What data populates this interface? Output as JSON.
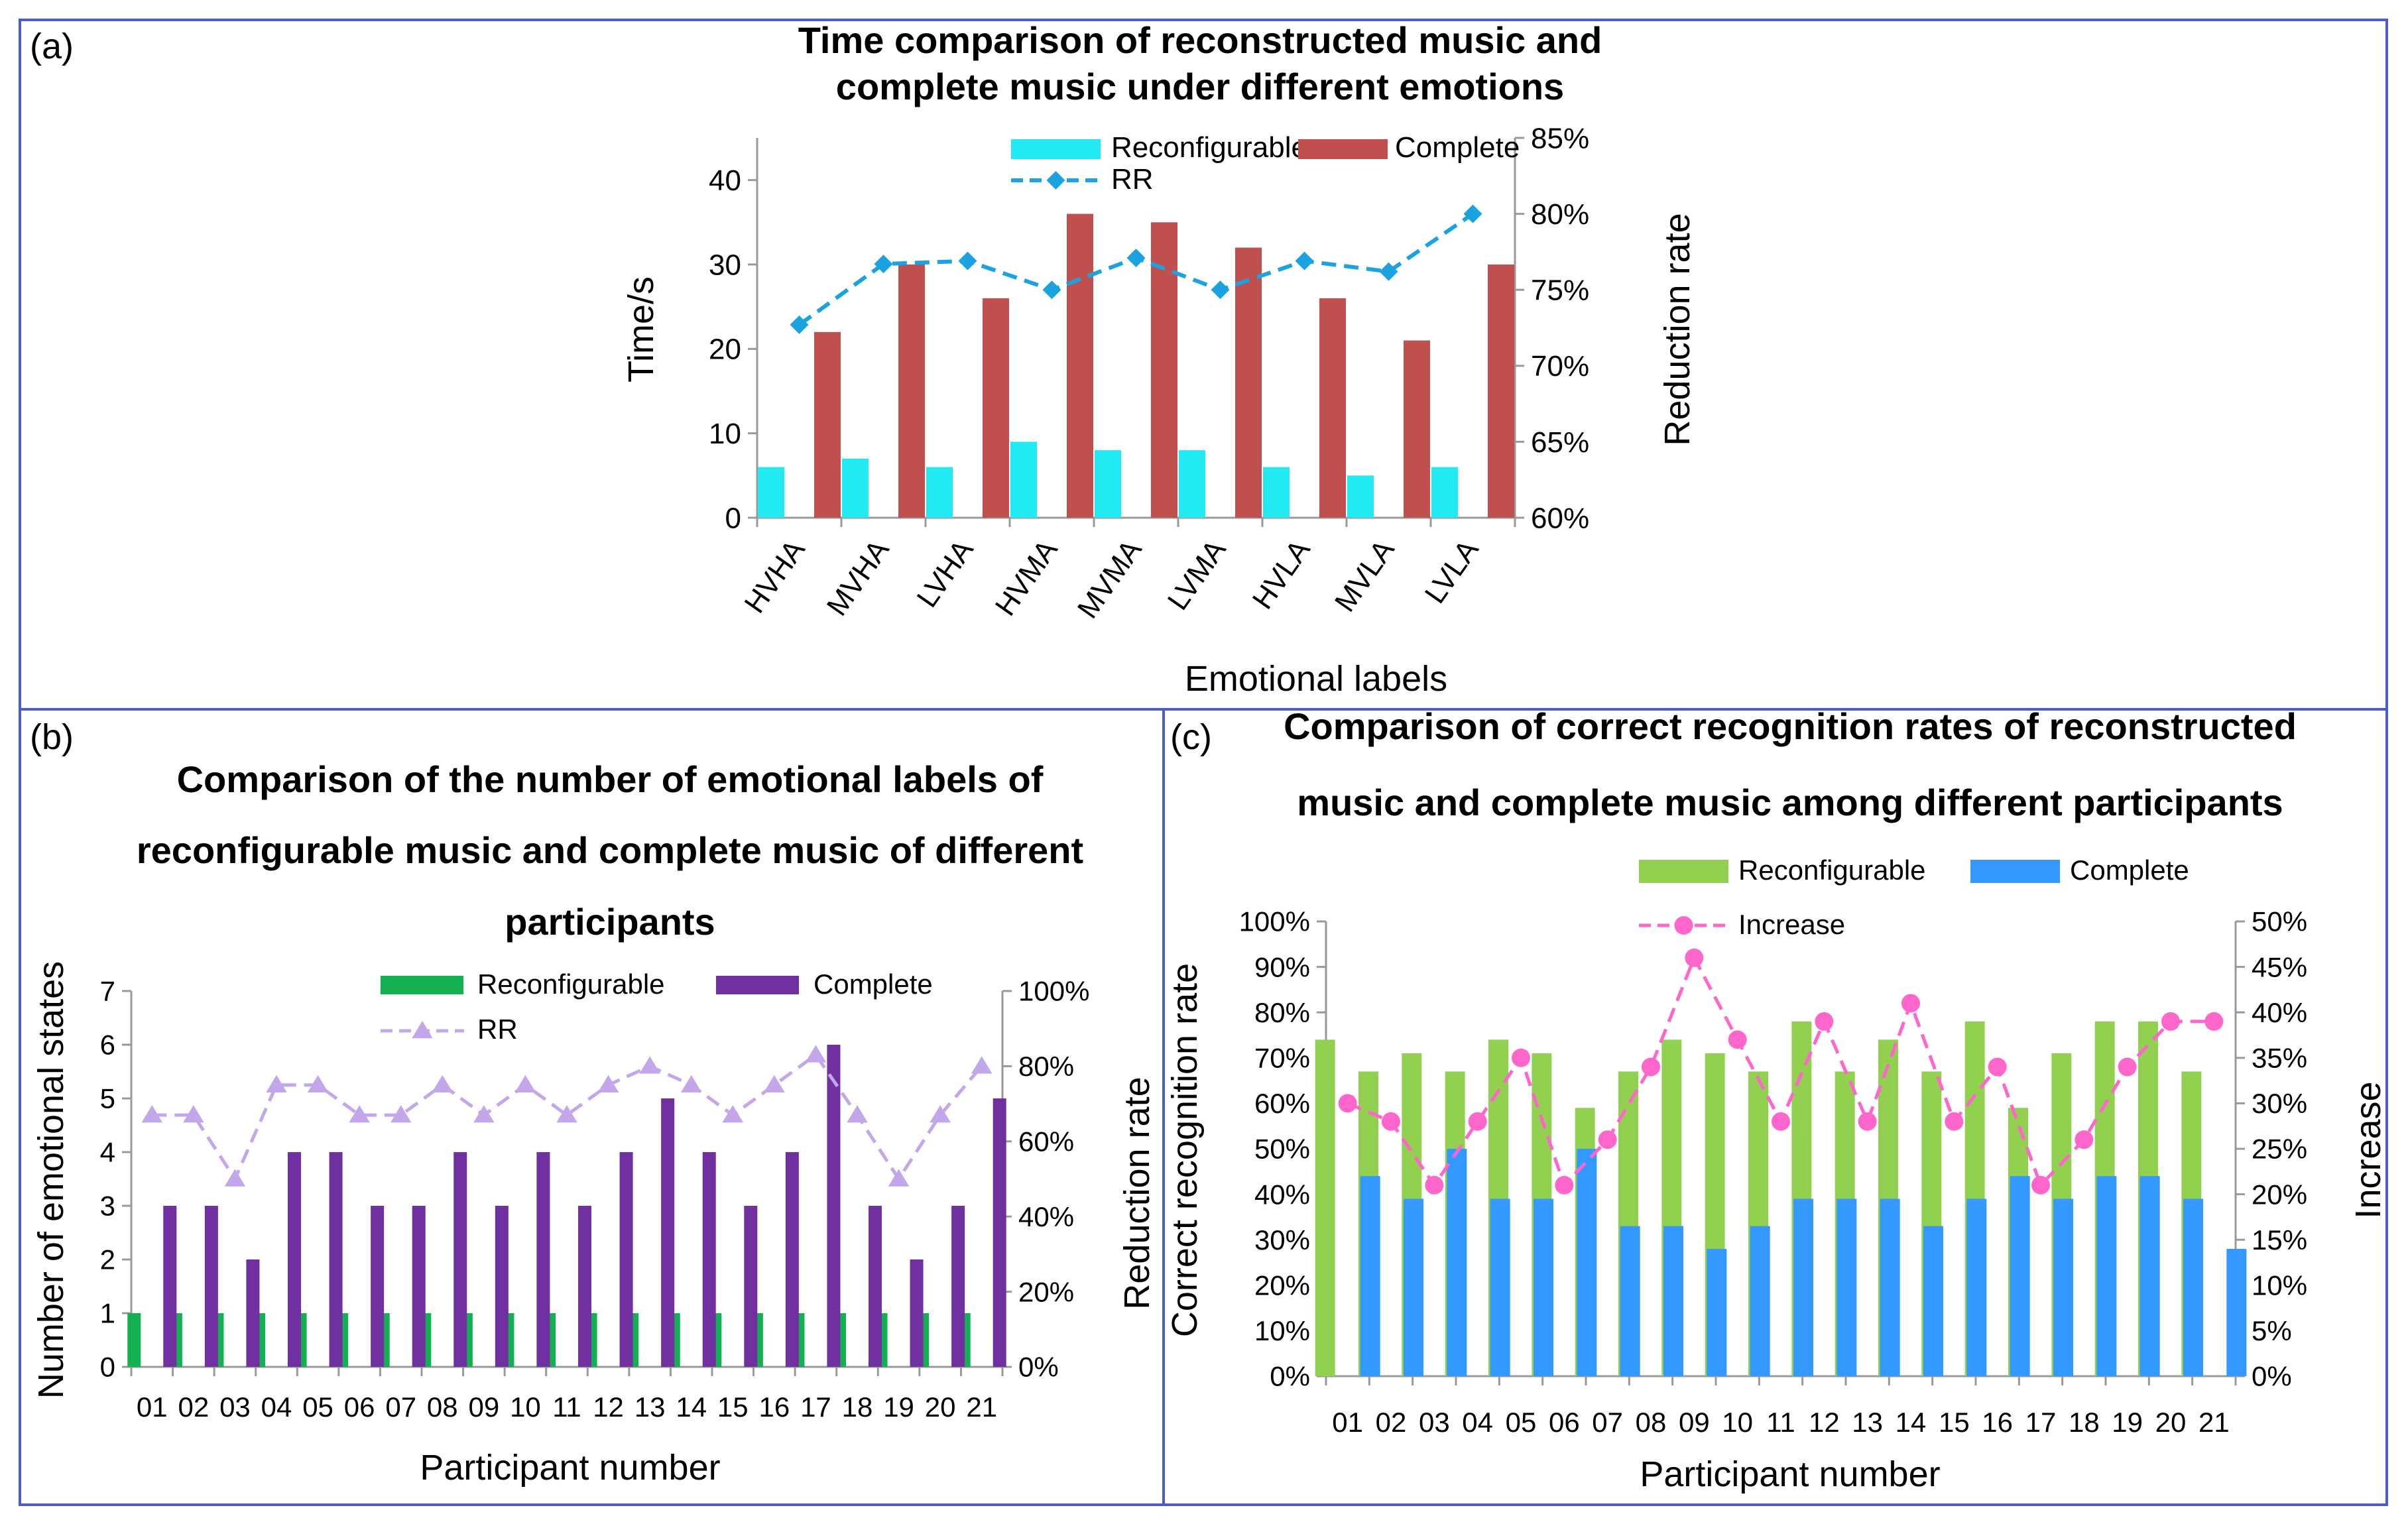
{
  "chart_data": [
    {
      "panel_label": "(a)",
      "type": "bar",
      "title": [
        "Time comparison of reconstructed music and",
        "complete music under different emotions"
      ],
      "xlabel": "Emotional labels",
      "ylabel": "Time/s",
      "y2label": "Reduction rate",
      "ylim": [
        0,
        45
      ],
      "yticks": [
        0,
        10,
        20,
        30,
        40
      ],
      "ytick_labels": [
        "0",
        "10",
        "20",
        "30",
        "40"
      ],
      "y2lim": [
        60,
        85
      ],
      "y2ticks": [
        60,
        65,
        70,
        75,
        80,
        85
      ],
      "y2tick_labels": [
        "60%",
        "65%",
        "70%",
        "75%",
        "80%",
        "85%"
      ],
      "categories": [
        "HVHA",
        "MVHA",
        "LVHA",
        "HVMA",
        "MVMA",
        "LVMA",
        "HVLA",
        "MVLA",
        "LVLA"
      ],
      "series": [
        {
          "name": "Reconfigurable",
          "kind": "bar",
          "axis": "left",
          "color": "#22eaf2",
          "values": [
            6,
            7,
            6,
            9,
            8,
            8,
            6,
            5,
            6
          ]
        },
        {
          "name": "Complete",
          "kind": "bar",
          "axis": "left",
          "color": "#c0504d",
          "values": [
            22,
            30,
            26,
            36,
            35,
            32,
            26,
            21,
            30
          ]
        },
        {
          "name": "RR",
          "kind": "line",
          "axis": "right",
          "color": "#1aa3e0",
          "marker": "diamond",
          "dashed": true,
          "values": [
            72.7,
            76.7,
            76.9,
            75.0,
            77.1,
            75.0,
            76.9,
            76.2,
            80.0
          ]
        }
      ],
      "legend": "top-right",
      "grid": false
    },
    {
      "panel_label": "(b)",
      "type": "bar",
      "title": [
        "Comparison of the number of emotional labels of",
        "reconfigurable music and complete music of different",
        "participants"
      ],
      "xlabel": "Participant number",
      "ylabel": "Number of emotional states",
      "y2label": "Reduction rate",
      "ylim": [
        0,
        7
      ],
      "yticks": [
        0,
        1,
        2,
        3,
        4,
        5,
        6,
        7
      ],
      "ytick_labels": [
        "0",
        "1",
        "2",
        "3",
        "4",
        "5",
        "6",
        "7"
      ],
      "y2lim": [
        0,
        100
      ],
      "y2ticks": [
        0,
        20,
        40,
        60,
        80,
        100
      ],
      "y2tick_labels": [
        "0%",
        "20%",
        "40%",
        "60%",
        "80%",
        "100%"
      ],
      "categories": [
        "01",
        "02",
        "03",
        "04",
        "05",
        "06",
        "07",
        "08",
        "09",
        "10",
        "11",
        "12",
        "13",
        "14",
        "15",
        "16",
        "17",
        "18",
        "19",
        "20",
        "21"
      ],
      "series": [
        {
          "name": "Reconfigurable",
          "kind": "bar",
          "axis": "left",
          "color": "#12b050",
          "values": [
            1,
            1,
            1,
            1,
            1,
            1,
            1,
            1,
            1,
            1,
            1,
            1,
            1,
            1,
            1,
            1,
            1,
            1,
            1,
            1,
            1
          ]
        },
        {
          "name": "Complete",
          "kind": "bar",
          "axis": "left",
          "color": "#7030a0",
          "values": [
            3,
            3,
            2,
            4,
            4,
            3,
            3,
            4,
            3,
            4,
            3,
            4,
            5,
            4,
            3,
            4,
            6,
            3,
            2,
            3,
            5
          ]
        },
        {
          "name": "RR",
          "kind": "line",
          "axis": "right",
          "color": "#c4a6ea",
          "marker": "triangle",
          "dashed": true,
          "values": [
            67,
            67,
            50,
            75,
            75,
            67,
            67,
            75,
            67,
            75,
            67,
            75,
            80,
            75,
            67,
            75,
            83,
            67,
            50,
            67,
            80
          ]
        }
      ],
      "legend": "top-right",
      "grid": false
    },
    {
      "panel_label": "(c)",
      "type": "bar",
      "title": [
        "Comparison of correct recognition rates of reconstructed",
        "music and complete music among different participants"
      ],
      "xlabel": "Participant number",
      "ylabel": "Correct recognition rate",
      "y2label": "Increase",
      "ylim": [
        0,
        100
      ],
      "yticks": [
        0,
        10,
        20,
        30,
        40,
        50,
        60,
        70,
        80,
        90,
        100
      ],
      "ytick_labels": [
        "0%",
        "10%",
        "20%",
        "30%",
        "40%",
        "50%",
        "60%",
        "70%",
        "80%",
        "90%",
        "100%"
      ],
      "y2lim": [
        0,
        50
      ],
      "y2ticks": [
        0,
        5,
        10,
        15,
        20,
        25,
        30,
        35,
        40,
        45,
        50
      ],
      "y2tick_labels": [
        "0%",
        "5%",
        "10%",
        "15%",
        "20%",
        "25%",
        "30%",
        "35%",
        "40%",
        "45%",
        "50%"
      ],
      "categories": [
        "01",
        "02",
        "03",
        "04",
        "05",
        "06",
        "07",
        "08",
        "09",
        "10",
        "11",
        "12",
        "13",
        "14",
        "15",
        "16",
        "17",
        "18",
        "19",
        "20",
        "21"
      ],
      "series": [
        {
          "name": "Reconfigurable",
          "kind": "bar",
          "axis": "left",
          "color": "#92d050",
          "values": [
            74,
            67,
            71,
            67,
            74,
            71,
            59,
            67,
            74,
            71,
            67,
            78,
            67,
            74,
            67,
            78,
            59,
            71,
            78,
            78,
            67
          ]
        },
        {
          "name": "Complete",
          "kind": "bar",
          "axis": "left",
          "color": "#3399ff",
          "values": [
            44,
            39,
            50,
            39,
            39,
            50,
            33,
            33,
            28,
            33,
            39,
            39,
            39,
            33,
            39,
            44,
            39,
            44,
            44,
            39,
            28
          ]
        },
        {
          "name": "Increase",
          "kind": "line",
          "axis": "right",
          "color": "#ff66cc",
          "marker": "circle",
          "dashed": true,
          "values": [
            30,
            28,
            21,
            28,
            35,
            21,
            26,
            34,
            46,
            37,
            28,
            39,
            28,
            41,
            28,
            34,
            21,
            26,
            34,
            39,
            39
          ]
        }
      ],
      "legend": "top",
      "grid": false
    }
  ]
}
